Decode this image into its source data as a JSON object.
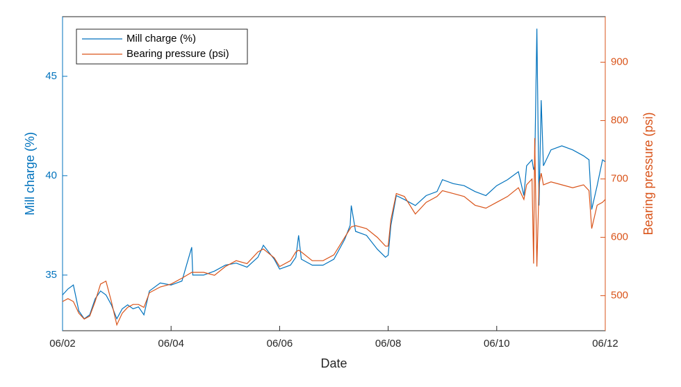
{
  "chart_data": {
    "type": "line",
    "xlabel": "Date",
    "ylabel": "Mill charge (%)",
    "y2label": "Bearing pressure (psi)",
    "x": [
      2.0,
      2.1,
      2.2,
      2.3,
      2.4,
      2.5,
      2.6,
      2.7,
      2.8,
      2.9,
      3.0,
      3.1,
      3.2,
      3.3,
      3.4,
      3.5,
      3.6,
      3.8,
      4.0,
      4.2,
      4.38,
      4.4,
      4.6,
      4.8,
      5.0,
      5.2,
      5.4,
      5.6,
      5.7,
      5.9,
      6.0,
      6.2,
      6.3,
      6.35,
      6.4,
      6.6,
      6.8,
      7.0,
      7.2,
      7.3,
      7.32,
      7.4,
      7.6,
      7.8,
      7.95,
      8.0,
      8.05,
      8.15,
      8.3,
      8.5,
      8.7,
      8.9,
      9.0,
      9.2,
      9.4,
      9.6,
      9.8,
      10.0,
      10.2,
      10.4,
      10.5,
      10.55,
      10.65,
      10.68,
      10.7,
      10.74,
      10.78,
      10.82,
      10.86,
      11.0,
      11.2,
      11.4,
      11.6,
      11.7,
      11.75,
      11.85,
      11.95,
      12.0
    ],
    "series": [
      {
        "name": "Mill charge (%)",
        "color": "#0072bd",
        "values": [
          34.0,
          34.3,
          34.5,
          33.2,
          32.8,
          33.0,
          33.8,
          34.2,
          34.0,
          33.5,
          32.8,
          33.3,
          33.5,
          33.3,
          33.4,
          33.0,
          34.2,
          34.6,
          34.5,
          34.7,
          36.4,
          35.0,
          35.0,
          35.2,
          35.5,
          35.6,
          35.4,
          35.9,
          36.5,
          35.8,
          35.3,
          35.5,
          35.9,
          37.0,
          35.8,
          35.5,
          35.5,
          35.8,
          36.8,
          37.5,
          38.5,
          37.2,
          37.0,
          36.3,
          35.9,
          36.0,
          37.5,
          39.0,
          38.8,
          38.5,
          39.0,
          39.2,
          39.8,
          39.6,
          39.5,
          39.2,
          39.0,
          39.5,
          39.8,
          40.2,
          39.0,
          40.5,
          40.8,
          40.3,
          40.5,
          47.4,
          38.5,
          43.8,
          40.5,
          41.3,
          41.5,
          41.3,
          41.0,
          40.8,
          38.3,
          39.5,
          40.8,
          40.7
        ]
      },
      {
        "name": "Bearing pressure (psi)",
        "color": "#d95319",
        "axis": "y2",
        "values": [
          490,
          495,
          490,
          470,
          460,
          465,
          490,
          520,
          525,
          490,
          450,
          470,
          480,
          485,
          485,
          480,
          505,
          515,
          520,
          530,
          540,
          540,
          540,
          535,
          550,
          560,
          555,
          575,
          580,
          565,
          550,
          560,
          575,
          578,
          575,
          560,
          560,
          570,
          600,
          615,
          618,
          620,
          615,
          600,
          585,
          585,
          630,
          675,
          670,
          640,
          660,
          670,
          680,
          675,
          670,
          655,
          650,
          660,
          670,
          685,
          665,
          690,
          700,
          555,
          770,
          550,
          690,
          710,
          690,
          695,
          690,
          685,
          690,
          680,
          615,
          655,
          660,
          665
        ]
      }
    ],
    "xlim": [
      2,
      12
    ],
    "xticks": [
      {
        "value": 2,
        "label": "06/02"
      },
      {
        "value": 4,
        "label": "06/04"
      },
      {
        "value": 6,
        "label": "06/06"
      },
      {
        "value": 8,
        "label": "06/08"
      },
      {
        "value": 10,
        "label": "06/10"
      },
      {
        "value": 12,
        "label": "06/12"
      }
    ],
    "ylim": [
      32.2,
      48
    ],
    "yticks": [
      35,
      40,
      45
    ],
    "y2lim": [
      440,
      978
    ],
    "y2ticks": [
      500,
      600,
      700,
      800,
      900
    ],
    "legend": "upper left",
    "grid": false
  }
}
